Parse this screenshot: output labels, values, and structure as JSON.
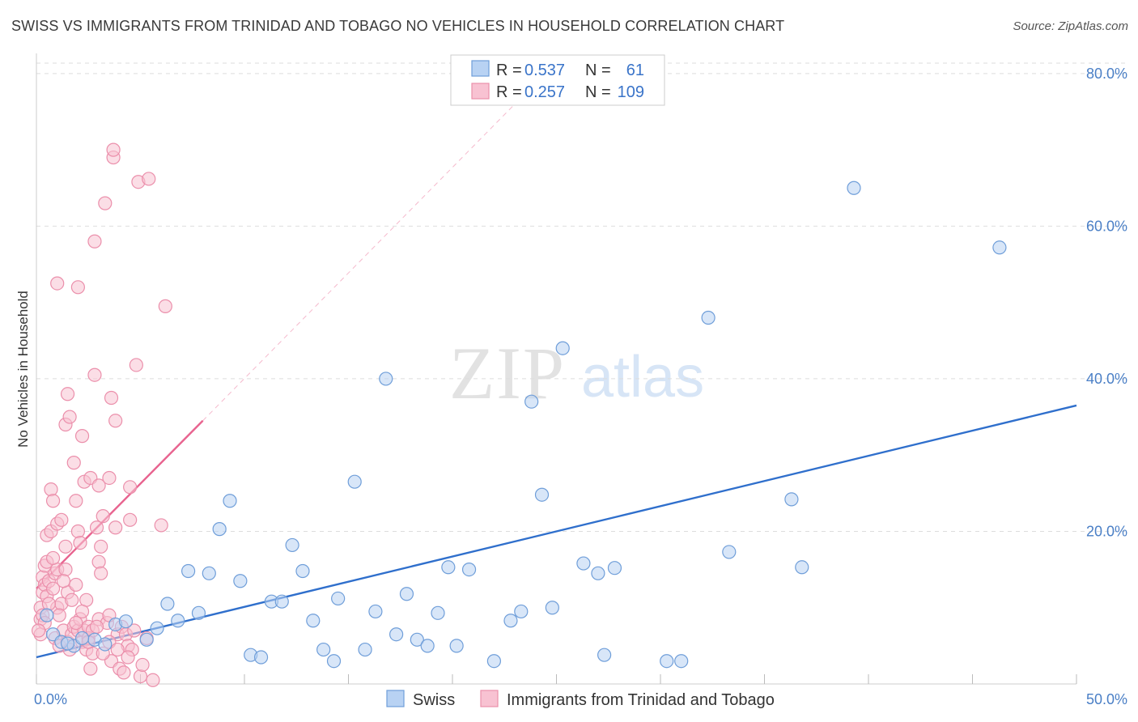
{
  "title": "SWISS VS IMMIGRANTS FROM TRINIDAD AND TOBAGO NO VEHICLES IN HOUSEHOLD CORRELATION CHART",
  "source": "Source: ZipAtlas.com",
  "watermark": {
    "zip": "ZIP",
    "atlas": "atlas"
  },
  "colors": {
    "swiss_fill": "#b8d2f3",
    "swiss_stroke": "#6f9ed9",
    "swiss_line": "#2f6fcc",
    "tt_fill": "#f8c2d2",
    "tt_stroke": "#eb8fab",
    "tt_line": "#e8638f",
    "tick": "#4a7fc6",
    "grid": "#dddddd"
  },
  "legend_top": [
    {
      "r_label": "R =",
      "r_value": "0.537",
      "n_label": "N =",
      "n_value": "61",
      "series": "swiss"
    },
    {
      "r_label": "R =",
      "r_value": "0.257",
      "n_label": "N =",
      "n_value": "109",
      "series": "tt"
    }
  ],
  "chart_data": {
    "type": "scatter",
    "ylabel": "No Vehicles in Household",
    "xlabel": "",
    "xlim": [
      0,
      50
    ],
    "ylim": [
      0,
      82
    ],
    "x_tick_labels": [
      {
        "value": 0,
        "label": "0.0%"
      },
      {
        "value": 50,
        "label": "50.0%"
      }
    ],
    "y_tick_labels": [
      {
        "value": 20,
        "label": "20.0%"
      },
      {
        "value": 40,
        "label": "40.0%"
      },
      {
        "value": 60,
        "label": "60.0%"
      },
      {
        "value": 80,
        "label": "80.0%"
      }
    ],
    "grid": true,
    "legend_placement": "bottom-center",
    "series": [
      {
        "name": "Swiss",
        "key": "swiss",
        "points": [
          [
            0.5,
            9.0
          ],
          [
            0.8,
            6.5
          ],
          [
            1.2,
            5.5
          ],
          [
            1.8,
            5.0
          ],
          [
            2.8,
            5.8
          ],
          [
            3.3,
            5.2
          ],
          [
            3.8,
            7.8
          ],
          [
            4.3,
            8.2
          ],
          [
            5.3,
            5.8
          ],
          [
            5.8,
            7.3
          ],
          [
            6.3,
            10.5
          ],
          [
            6.8,
            8.3
          ],
          [
            7.3,
            14.8
          ],
          [
            7.8,
            9.3
          ],
          [
            8.3,
            14.5
          ],
          [
            8.8,
            20.3
          ],
          [
            9.3,
            24.0
          ],
          [
            9.8,
            13.5
          ],
          [
            10.3,
            3.8
          ],
          [
            10.8,
            3.5
          ],
          [
            11.3,
            10.8
          ],
          [
            11.8,
            10.8
          ],
          [
            12.3,
            18.2
          ],
          [
            12.8,
            14.8
          ],
          [
            13.3,
            8.3
          ],
          [
            13.8,
            4.5
          ],
          [
            14.3,
            3.0
          ],
          [
            14.5,
            11.2
          ],
          [
            15.3,
            26.5
          ],
          [
            15.8,
            4.5
          ],
          [
            16.3,
            9.5
          ],
          [
            16.8,
            40.0
          ],
          [
            17.3,
            6.5
          ],
          [
            17.8,
            11.8
          ],
          [
            18.3,
            5.8
          ],
          [
            18.8,
            5.0
          ],
          [
            19.3,
            9.3
          ],
          [
            19.8,
            15.3
          ],
          [
            20.2,
            5.0
          ],
          [
            20.8,
            15.0
          ],
          [
            22.0,
            3.0
          ],
          [
            22.8,
            8.3
          ],
          [
            23.3,
            9.5
          ],
          [
            23.8,
            37.0
          ],
          [
            24.3,
            24.8
          ],
          [
            24.8,
            10.0
          ],
          [
            25.3,
            44.0
          ],
          [
            26.3,
            15.8
          ],
          [
            27.0,
            14.5
          ],
          [
            27.3,
            3.8
          ],
          [
            27.8,
            15.2
          ],
          [
            30.3,
            3.0
          ],
          [
            31.0,
            3.0
          ],
          [
            32.3,
            48.0
          ],
          [
            33.3,
            17.3
          ],
          [
            36.3,
            24.2
          ],
          [
            36.8,
            15.3
          ],
          [
            39.3,
            65.0
          ],
          [
            46.3,
            57.2
          ],
          [
            1.5,
            5.3
          ],
          [
            2.2,
            6.0
          ]
        ]
      },
      {
        "name": "Immigrants from Trinidad and Tobago",
        "key": "tt",
        "points": [
          [
            0.2,
            8.5
          ],
          [
            0.2,
            10.0
          ],
          [
            0.3,
            9.0
          ],
          [
            0.3,
            12.0
          ],
          [
            0.3,
            14.0
          ],
          [
            0.4,
            13.0
          ],
          [
            0.4,
            15.5
          ],
          [
            0.5,
            16.0
          ],
          [
            0.5,
            19.5
          ],
          [
            0.5,
            11.5
          ],
          [
            0.6,
            13.5
          ],
          [
            0.7,
            20.0
          ],
          [
            0.7,
            25.5
          ],
          [
            0.8,
            24.0
          ],
          [
            0.8,
            12.5
          ],
          [
            0.9,
            14.5
          ],
          [
            0.9,
            6.0
          ],
          [
            1.0,
            15.0
          ],
          [
            1.0,
            10.0
          ],
          [
            1.0,
            21.0
          ],
          [
            1.0,
            52.5
          ],
          [
            1.1,
            5.0
          ],
          [
            1.2,
            21.5
          ],
          [
            1.2,
            10.5
          ],
          [
            1.3,
            7.0
          ],
          [
            1.4,
            18.0
          ],
          [
            1.4,
            15.0
          ],
          [
            1.4,
            34.0
          ],
          [
            1.5,
            38.0
          ],
          [
            1.5,
            5.5
          ],
          [
            1.5,
            12.0
          ],
          [
            1.6,
            35.0
          ],
          [
            1.7,
            6.5
          ],
          [
            1.7,
            11.0
          ],
          [
            1.8,
            29.0
          ],
          [
            1.8,
            7.5
          ],
          [
            1.9,
            13.0
          ],
          [
            1.9,
            24.0
          ],
          [
            2.0,
            20.0
          ],
          [
            2.0,
            7.0
          ],
          [
            2.0,
            52.0
          ],
          [
            2.1,
            8.5
          ],
          [
            2.1,
            18.5
          ],
          [
            2.2,
            32.5
          ],
          [
            2.2,
            5.5
          ],
          [
            2.3,
            26.5
          ],
          [
            2.3,
            7.0
          ],
          [
            2.4,
            11.0
          ],
          [
            2.4,
            4.5
          ],
          [
            2.5,
            7.5
          ],
          [
            2.5,
            6.0
          ],
          [
            2.6,
            2.0
          ],
          [
            2.6,
            27.0
          ],
          [
            2.7,
            7.0
          ],
          [
            2.7,
            4.0
          ],
          [
            2.8,
            40.5
          ],
          [
            2.8,
            58.0
          ],
          [
            2.9,
            20.5
          ],
          [
            3.0,
            8.5
          ],
          [
            3.0,
            16.0
          ],
          [
            3.0,
            26.0
          ],
          [
            3.1,
            14.5
          ],
          [
            3.1,
            18.0
          ],
          [
            3.2,
            22.0
          ],
          [
            3.3,
            63.0
          ],
          [
            3.4,
            8.0
          ],
          [
            3.5,
            9.0
          ],
          [
            3.5,
            27.0
          ],
          [
            3.6,
            37.5
          ],
          [
            3.6,
            3.0
          ],
          [
            3.7,
            69.0
          ],
          [
            3.7,
            70.0
          ],
          [
            3.8,
            34.5
          ],
          [
            3.8,
            20.5
          ],
          [
            3.9,
            6.5
          ],
          [
            4.0,
            2.0
          ],
          [
            4.1,
            7.5
          ],
          [
            4.2,
            1.5
          ],
          [
            4.3,
            6.5
          ],
          [
            4.4,
            5.0
          ],
          [
            4.5,
            25.8
          ],
          [
            4.5,
            21.5
          ],
          [
            4.6,
            4.5
          ],
          [
            4.7,
            7.0
          ],
          [
            4.8,
            41.8
          ],
          [
            4.9,
            65.8
          ],
          [
            5.0,
            1.0
          ],
          [
            5.1,
            2.5
          ],
          [
            5.3,
            6.0
          ],
          [
            5.4,
            66.2
          ],
          [
            5.6,
            0.5
          ],
          [
            6.0,
            20.8
          ],
          [
            6.2,
            49.5
          ],
          [
            0.2,
            6.5
          ],
          [
            0.4,
            8.0
          ],
          [
            0.6,
            10.5
          ],
          [
            0.8,
            16.5
          ],
          [
            1.1,
            9.0
          ],
          [
            1.3,
            13.5
          ],
          [
            1.6,
            4.5
          ],
          [
            1.9,
            8.0
          ],
          [
            2.2,
            9.5
          ],
          [
            2.5,
            5.5
          ],
          [
            2.9,
            7.5
          ],
          [
            3.2,
            4.0
          ],
          [
            3.5,
            5.5
          ],
          [
            3.9,
            4.5
          ],
          [
            4.4,
            3.5
          ],
          [
            0.1,
            7.0
          ]
        ]
      }
    ],
    "trend_lines": [
      {
        "series": "swiss",
        "from": [
          0,
          3.5
        ],
        "to": [
          50,
          36.5
        ],
        "style": "solid"
      },
      {
        "series": "tt",
        "from": [
          0,
          12.5
        ],
        "to": [
          8,
          34.5
        ],
        "style": "solid"
      },
      {
        "series": "tt",
        "from": [
          8,
          34.5
        ],
        "to": [
          23,
          76.0
        ],
        "style": "dashed"
      }
    ]
  }
}
